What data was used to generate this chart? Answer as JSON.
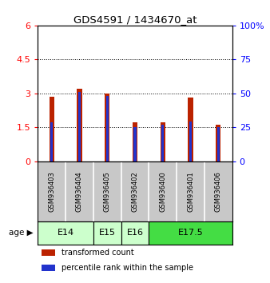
{
  "title": "GDS4591 / 1434670_at",
  "samples": [
    "GSM936403",
    "GSM936404",
    "GSM936405",
    "GSM936402",
    "GSM936400",
    "GSM936401",
    "GSM936406"
  ],
  "red_values": [
    2.85,
    3.2,
    3.0,
    1.72,
    1.74,
    2.82,
    1.62
  ],
  "blue_values": [
    1.72,
    3.05,
    2.88,
    1.52,
    1.62,
    1.76,
    1.52
  ],
  "left_ylim": [
    0,
    6
  ],
  "left_yticks": [
    0,
    1.5,
    3.0,
    4.5,
    6
  ],
  "left_yticklabels": [
    "0",
    "1.5",
    "3",
    "4.5",
    "6"
  ],
  "right_ylim": [
    0,
    100
  ],
  "right_yticks": [
    0,
    25,
    50,
    75,
    100
  ],
  "right_yticklabels": [
    "0",
    "25",
    "50",
    "75",
    "100%"
  ],
  "red_bar_width": 0.18,
  "blue_bar_width": 0.18,
  "red_color": "#bb2200",
  "blue_color": "#2233cc",
  "bg_color": "#ffffff",
  "sample_bg": "#c8c8c8",
  "grid_dotted_color": "#000000",
  "hline_values": [
    1.5,
    3.0,
    4.5
  ],
  "group_info": [
    {
      "label": "E14",
      "start": 0,
      "end": 1,
      "color": "#ccffcc"
    },
    {
      "label": "E15",
      "start": 2,
      "end": 2,
      "color": "#ccffcc"
    },
    {
      "label": "E16",
      "start": 3,
      "end": 3,
      "color": "#ccffcc"
    },
    {
      "label": "E17.5",
      "start": 4,
      "end": 6,
      "color": "#44dd44"
    }
  ],
  "legend_red": "transformed count",
  "legend_blue": "percentile rank within the sample"
}
